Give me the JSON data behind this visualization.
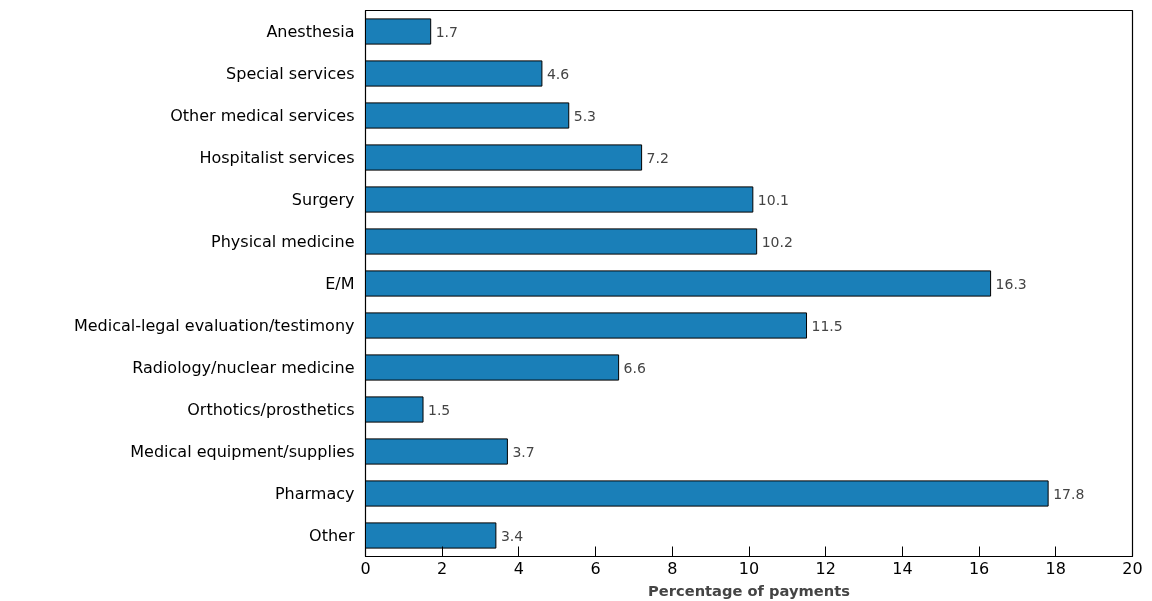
{
  "chart_data": {
    "type": "bar",
    "orientation": "horizontal",
    "xlabel": "Percentage of payments",
    "categories": [
      "Anesthesia",
      "Special services",
      "Other medical services",
      "Hospitalist services",
      "Surgery",
      "Physical medicine",
      "E/M",
      "Medical-legal evaluation/testimony",
      "Radiology/nuclear medicine",
      "Orthotics/prosthetics",
      "Medical equipment/supplies",
      "Pharmacy",
      "Other"
    ],
    "values": [
      1.7,
      4.6,
      5.3,
      7.2,
      10.1,
      10.2,
      16.3,
      11.5,
      6.6,
      1.5,
      3.7,
      17.8,
      3.4
    ],
    "color": "#1a7fb8",
    "xlim": [
      0,
      20
    ],
    "xticks": [
      0,
      2,
      4,
      6,
      8,
      10,
      12,
      14,
      16,
      18,
      20
    ],
    "grid": false,
    "data_labels": true
  }
}
